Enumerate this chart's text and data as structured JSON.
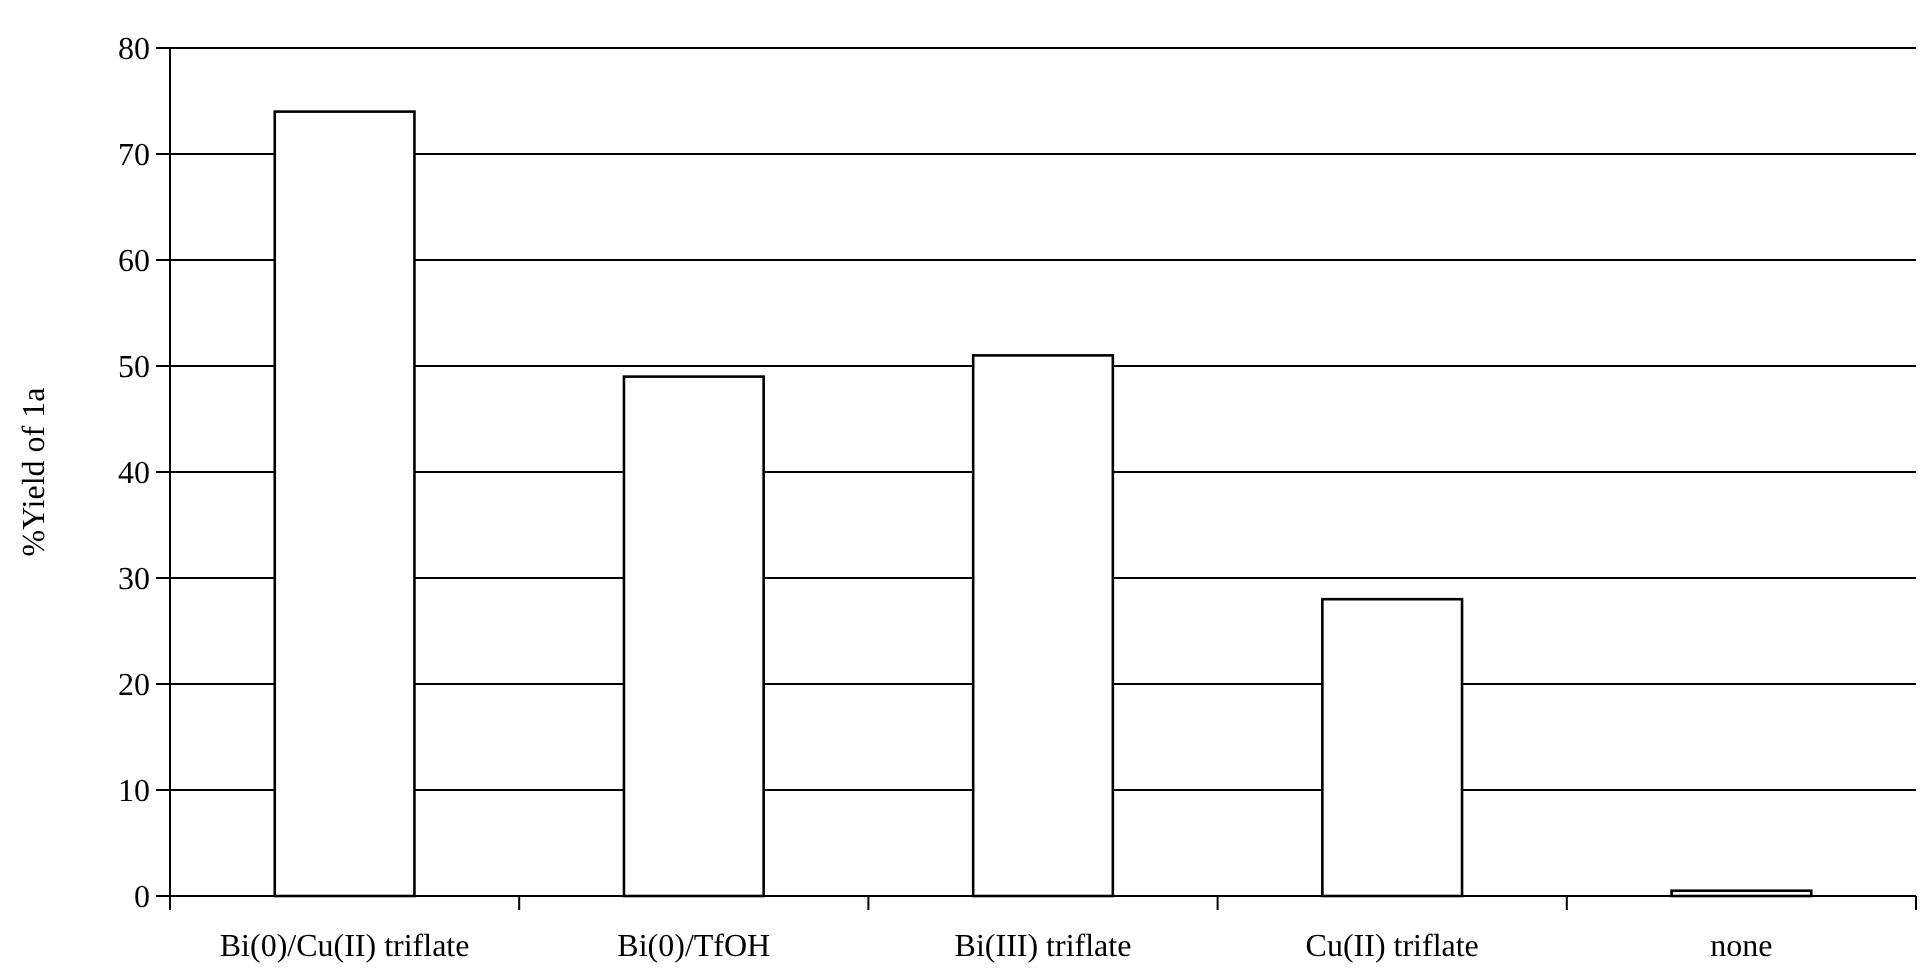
{
  "chart_data": {
    "type": "bar",
    "ylabel": "%Yield of 1a",
    "categories": [
      "Bi(0)/Cu(II) triflate",
      "Bi(0)/TfOH",
      "Bi(III) triflate",
      "Cu(II) triflate",
      "none"
    ],
    "values": [
      74,
      49,
      51,
      28,
      0.5
    ],
    "color": "#ffffff",
    "ylim": [
      0,
      80
    ],
    "yticks": [
      0,
      10,
      20,
      30,
      40,
      50,
      60,
      70,
      80
    ],
    "grid": "y"
  }
}
